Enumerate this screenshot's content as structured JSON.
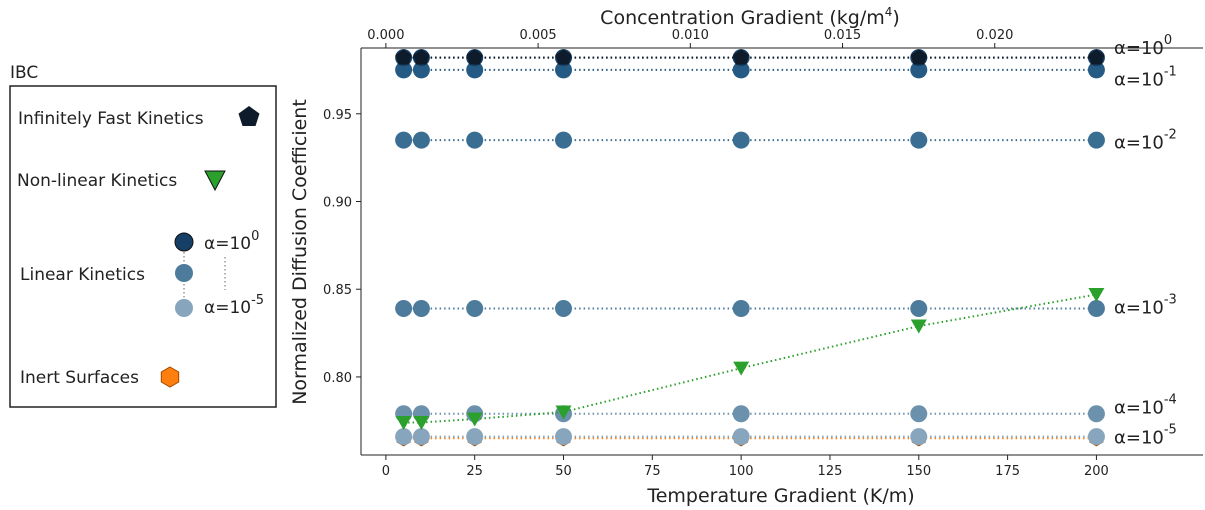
{
  "chart_data": {
    "type": "scatter",
    "xlabel": "Temperature Gradient (K/m)",
    "ylabel": "Normalized Diffusion Coefficient",
    "top_xlabel": "Concentration Gradient (kg/m",
    "top_xlabel_sup": "4",
    "top_xlabel_close": ")",
    "xlim": [
      -7,
      230
    ],
    "ylim": [
      0.7555,
      0.9875
    ],
    "x_ticks": [
      0,
      25,
      50,
      75,
      100,
      125,
      150,
      175,
      200
    ],
    "x_tick_labels": [
      "0",
      "25",
      "50",
      "75",
      "100",
      "125",
      "150",
      "175",
      "200"
    ],
    "y_ticks": [
      0.8,
      0.85,
      0.9,
      0.95
    ],
    "y_tick_labels": [
      "0.80",
      "0.85",
      "0.90",
      "0.95"
    ],
    "top_ticks": [
      0.0,
      0.005,
      0.01,
      0.015,
      0.02
    ],
    "top_tick_labels": [
      "0.000",
      "0.005",
      "0.010",
      "0.015",
      "0.020"
    ],
    "top_xlim": [
      -0.000817,
      0.02684
    ],
    "x": [
      5,
      10,
      25,
      50,
      100,
      150,
      200
    ],
    "series": [
      {
        "kind": "inert",
        "color": "#ff7f0e",
        "edge": "#a04800",
        "marker": "hexagon",
        "values": [
          0.765,
          0.765,
          0.765,
          0.765,
          0.765,
          0.765,
          0.765
        ]
      },
      {
        "kind": "linear",
        "color": "#87a5bc",
        "marker": "circle",
        "values": [
          0.766,
          0.766,
          0.766,
          0.766,
          0.766,
          0.766,
          0.766
        ]
      },
      {
        "kind": "linear",
        "color": "#6b91ad",
        "marker": "circle",
        "values": [
          0.779,
          0.779,
          0.779,
          0.779,
          0.779,
          0.779,
          0.779
        ]
      },
      {
        "kind": "linear",
        "color": "#4d7b9c",
        "marker": "circle",
        "values": [
          0.839,
          0.839,
          0.839,
          0.839,
          0.839,
          0.839,
          0.839
        ]
      },
      {
        "kind": "linear",
        "color": "#3a6d92",
        "marker": "circle",
        "values": [
          0.935,
          0.935,
          0.935,
          0.935,
          0.935,
          0.935,
          0.935
        ]
      },
      {
        "kind": "linear",
        "color": "#245a83",
        "marker": "circle",
        "values": [
          0.975,
          0.975,
          0.975,
          0.975,
          0.975,
          0.975,
          0.975
        ]
      },
      {
        "kind": "linear",
        "color": "#163f66",
        "marker": "circle",
        "values": [
          0.982,
          0.982,
          0.982,
          0.982,
          0.982,
          0.982,
          0.982
        ]
      },
      {
        "kind": "fast",
        "color": "#0d1b2a",
        "marker": "pentagon",
        "values": [
          0.982,
          0.982,
          0.982,
          0.982,
          0.982,
          0.982,
          0.982
        ]
      },
      {
        "kind": "nonlinear",
        "color": "#2ca02c",
        "marker": "triangle-down",
        "values": [
          0.774,
          0.774,
          0.776,
          0.78,
          0.805,
          0.829,
          0.847
        ]
      }
    ],
    "annotations": [
      {
        "base": "α=10",
        "exp": "0",
        "y": 0.9875
      },
      {
        "base": "α=10",
        "exp": "-1",
        "y": 0.9695
      },
      {
        "base": "α=10",
        "exp": "-2",
        "y": 0.9335
      },
      {
        "base": "α=10",
        "exp": "-3",
        "y": 0.8395
      },
      {
        "base": "α=10",
        "exp": "-4",
        "y": 0.7825
      },
      {
        "base": "α=10",
        "exp": "-5",
        "y": 0.7655
      }
    ],
    "legend": {
      "title": "IBC",
      "placement": "outside-left",
      "fast_label": "Infinitely Fast Kinetics",
      "nonlinear_label": "Non-linear Kinetics",
      "linear_label": "Linear Kinetics",
      "linear_top": {
        "base": "α=10",
        "exp": "0"
      },
      "linear_bottom": {
        "base": "α=10",
        "exp": "-5"
      },
      "inert_label": "Inert Surfaces"
    }
  }
}
